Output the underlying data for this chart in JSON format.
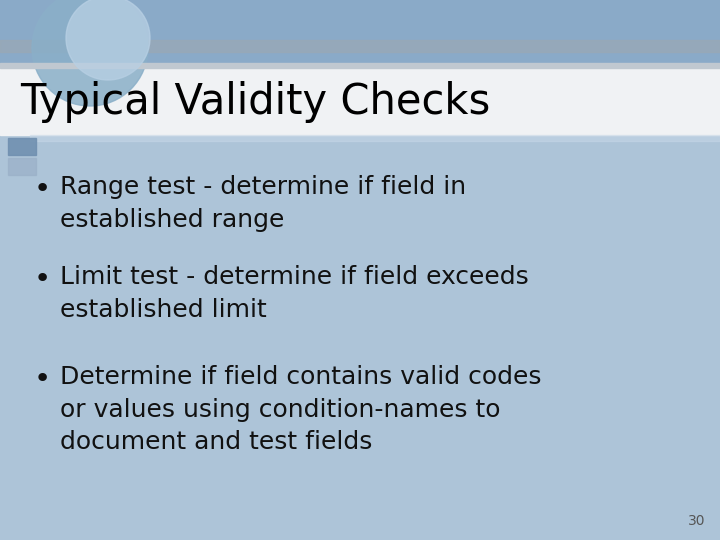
{
  "title": "Typical Validity Checks",
  "bullet_points": [
    "Range test - determine if field in\nestablished range",
    "Limit test - determine if field exceeds\nestablished limit",
    "Determine if field contains valid codes\nor values using condition-names to\ndocument and test fields"
  ],
  "slide_bg": "#ffffff",
  "header_bg": "#6b8cae",
  "header_bg2": "#8aaac8",
  "title_bg": "#f2f4f6",
  "content_bg": "#adc4d8",
  "title_color": "#000000",
  "bullet_color": "#111111",
  "page_number": "30",
  "title_fontsize": 30,
  "bullet_fontsize": 18,
  "page_num_fontsize": 10,
  "gray_strip_color": "#b0b8c0",
  "accent_sq1": "#7090b0",
  "accent_sq2": "#9ab0c8"
}
